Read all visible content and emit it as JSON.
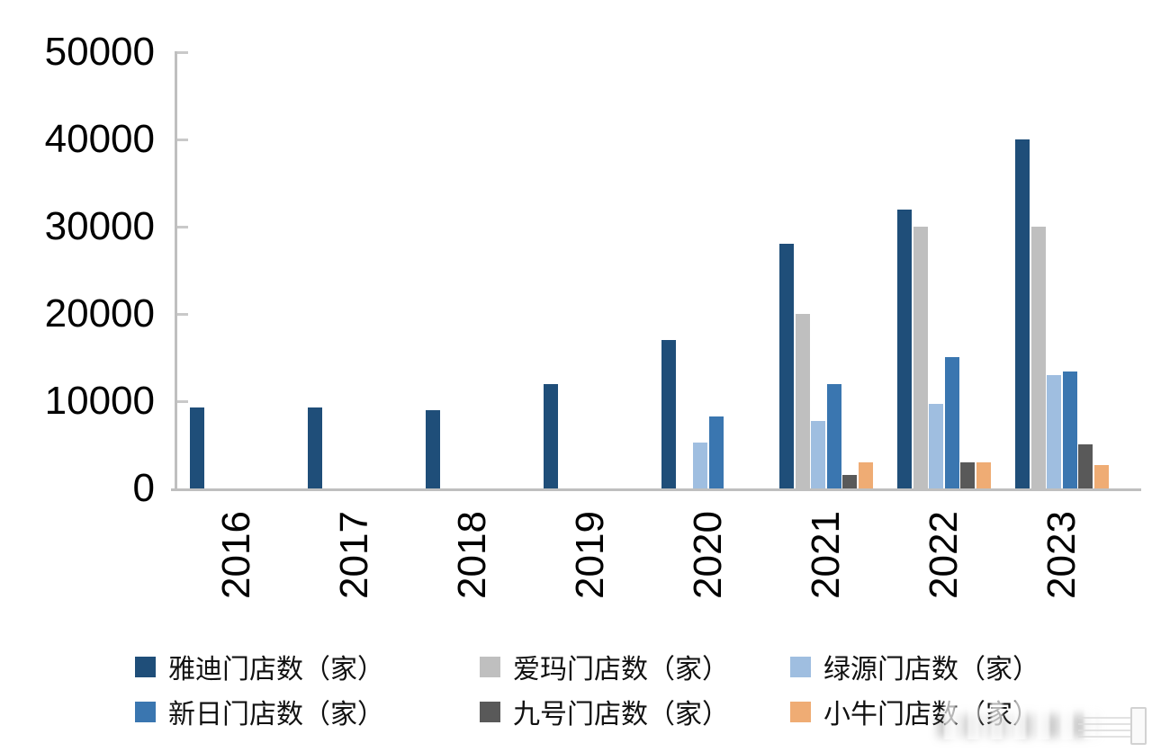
{
  "chart_data": {
    "type": "bar",
    "title": "",
    "categories": [
      "2016",
      "2017",
      "2018",
      "2019",
      "2020",
      "2021",
      "2022",
      "2023"
    ],
    "series": [
      {
        "key": "yadea",
        "name": "雅迪门店数（家）",
        "color": "#1F4E79",
        "values": [
          9300,
          9300,
          9000,
          12000,
          17000,
          28000,
          32000,
          40000
        ]
      },
      {
        "key": "aima",
        "name": "爱玛门店数（家）",
        "color": "#BFBFBF",
        "values": [
          0,
          0,
          0,
          0,
          0,
          20000,
          30000,
          30000
        ]
      },
      {
        "key": "luyuan",
        "name": "绿源门店数（家）",
        "color": "#9FBEE0",
        "values": [
          0,
          0,
          0,
          0,
          5300,
          7700,
          9700,
          13000
        ]
      },
      {
        "key": "sunra",
        "name": "新日门店数（家）",
        "color": "#3A76B0",
        "values": [
          0,
          0,
          0,
          0,
          8200,
          12000,
          15000,
          13400
        ]
      },
      {
        "key": "ninebot",
        "name": "九号门店数（家）",
        "color": "#595959",
        "values": [
          0,
          0,
          0,
          0,
          0,
          1500,
          3000,
          5000
        ]
      },
      {
        "key": "niu",
        "name": "小牛门店数（家）",
        "color": "#EFAC74",
        "values": [
          0,
          0,
          0,
          0,
          0,
          3000,
          3000,
          2700
        ]
      }
    ],
    "ylim": [
      0,
      50000
    ],
    "yticks": [
      0,
      10000,
      20000,
      30000,
      40000,
      50000
    ],
    "xlabel": "",
    "ylabel": "",
    "legend_position": "bottom",
    "legend_rows": 2,
    "grid": false,
    "axis_color": "#BFBFBF",
    "label_color": "#000000",
    "background": "#FFFFFF"
  }
}
